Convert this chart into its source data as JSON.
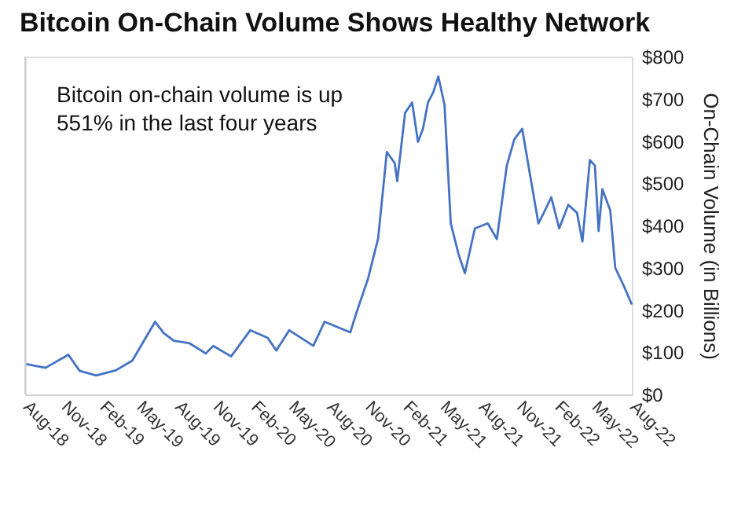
{
  "chart_data": {
    "type": "line",
    "title": "Bitcoin On-Chain Volume Shows Healthy Network",
    "ylabel": "On-Chain Volume (in Billions)",
    "annotations": [
      "Bitcoin on-chain volume is up\n551% in the last four years"
    ],
    "x": [
      "2018-08-04",
      "2018-09-19",
      "2018-11-13",
      "2018-12-10",
      "2019-01-19",
      "2019-03-07",
      "2019-04-16",
      "2019-06-10",
      "2019-07-01",
      "2019-07-25",
      "2019-09-01",
      "2019-10-10",
      "2019-10-28",
      "2019-12-10",
      "2020-01-25",
      "2020-03-07",
      "2020-03-28",
      "2020-04-28",
      "2020-06-25",
      "2020-07-22",
      "2020-09-22",
      "2020-10-07",
      "2020-11-04",
      "2020-11-28",
      "2020-12-19",
      "2021-01-07",
      "2021-01-13",
      "2021-02-01",
      "2021-02-18",
      "2021-03-04",
      "2021-03-16",
      "2021-03-28",
      "2021-04-10",
      "2021-04-22",
      "2021-05-07",
      "2021-05-22",
      "2021-06-10",
      "2021-06-25",
      "2021-07-19",
      "2021-08-19",
      "2021-09-10",
      "2021-10-04",
      "2021-10-22",
      "2021-11-10",
      "2021-11-25",
      "2021-12-19",
      "2022-01-01",
      "2022-01-19",
      "2022-02-07",
      "2022-03-01",
      "2022-03-22",
      "2022-04-04",
      "2022-04-22",
      "2022-05-04",
      "2022-05-13",
      "2022-05-22",
      "2022-06-10",
      "2022-06-22",
      "2022-07-13",
      "2022-08-01"
    ],
    "series": [
      {
        "color": "#4472c4",
        "values": [
          72,
          63,
          94,
          56,
          45,
          57,
          80,
          172,
          145,
          127,
          121,
          97,
          115,
          90,
          152,
          134,
          104,
          152,
          115,
          172,
          147,
          194,
          275,
          369,
          574,
          548,
          505,
          667,
          691,
          598,
          629,
          691,
          716,
          753,
          685,
          405,
          331,
          287,
          393,
          405,
          368,
          542,
          604,
          629,
          542,
          405,
          430,
          467,
          393,
          449,
          430,
          362,
          555,
          542,
          387,
          486,
          436,
          300,
          256,
          213
        ]
      }
    ],
    "xlim": [
      "2018-08-01",
      "2022-08-01"
    ],
    "xticks": [
      {
        "value": "2018-08-01",
        "label": "Aug-18"
      },
      {
        "value": "2018-11-01",
        "label": "Nov-18"
      },
      {
        "value": "2019-02-01",
        "label": "Feb-19"
      },
      {
        "value": "2019-05-01",
        "label": "May-19"
      },
      {
        "value": "2019-08-01",
        "label": "Aug-19"
      },
      {
        "value": "2019-11-01",
        "label": "Nov-19"
      },
      {
        "value": "2020-02-01",
        "label": "Feb-20"
      },
      {
        "value": "2020-05-01",
        "label": "May-20"
      },
      {
        "value": "2020-08-01",
        "label": "Aug-20"
      },
      {
        "value": "2020-11-01",
        "label": "Nov-20"
      },
      {
        "value": "2021-02-01",
        "label": "Feb-21"
      },
      {
        "value": "2021-05-01",
        "label": "May-21"
      },
      {
        "value": "2021-08-01",
        "label": "Aug-21"
      },
      {
        "value": "2021-11-01",
        "label": "Nov-21"
      },
      {
        "value": "2022-02-01",
        "label": "Feb-22"
      },
      {
        "value": "2022-05-01",
        "label": "May-22"
      },
      {
        "value": "2022-08-01",
        "label": "Aug-22"
      }
    ],
    "ylim": [
      0,
      800
    ],
    "yticks": [
      {
        "value": 0,
        "label": "$0"
      },
      {
        "value": 100,
        "label": "$100"
      },
      {
        "value": 200,
        "label": "$200"
      },
      {
        "value": 300,
        "label": "$300"
      },
      {
        "value": 400,
        "label": "$400"
      },
      {
        "value": 500,
        "label": "$500"
      },
      {
        "value": 600,
        "label": "$600"
      },
      {
        "value": 700,
        "label": "$700"
      },
      {
        "value": 800,
        "label": "$800"
      }
    ],
    "grid": false,
    "legend": false,
    "marker": "none",
    "line_style": "solid"
  }
}
